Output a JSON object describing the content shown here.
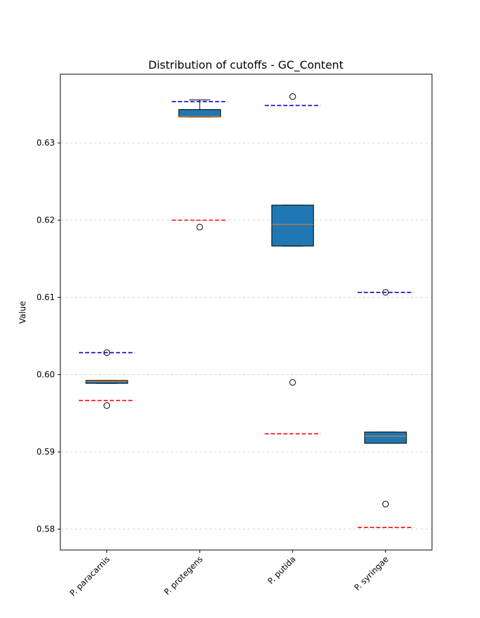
{
  "chart_data": {
    "type": "box",
    "title": "Distribution of cutoffs - GC_Content",
    "xlabel": "",
    "ylabel": "Value",
    "ylim": [
      0.5773,
      0.6389
    ],
    "yticks": [
      0.58,
      0.59,
      0.6,
      0.61,
      0.62,
      0.63
    ],
    "ytick_labels": [
      "0.58",
      "0.59",
      "0.60",
      "0.61",
      "0.62",
      "0.63"
    ],
    "grid": "horizontal dashed",
    "categories": [
      "P. paracarnis",
      "P. protegens",
      "P. putida",
      "P. syringae"
    ],
    "boxes": [
      {
        "q1": 0.59888,
        "median": 0.59912,
        "q3": 0.59925,
        "whisker_low": 0.59888,
        "whisker_high": 0.59925,
        "outliers": [
          0.60285,
          0.596
        ],
        "upper_cutoff": 0.60285,
        "lower_cutoff": 0.59665
      },
      {
        "q1": 0.63338,
        "median": 0.63345,
        "q3": 0.63432,
        "whisker_low": 0.63338,
        "whisker_high": 0.63557,
        "outliers": [
          0.6191
        ],
        "upper_cutoff": 0.63535,
        "lower_cutoff": 0.62
      },
      {
        "q1": 0.61665,
        "median": 0.61945,
        "q3": 0.62195,
        "whisker_low": 0.61665,
        "whisker_high": 0.62195,
        "outliers": [
          0.636,
          0.599
        ],
        "upper_cutoff": 0.63485,
        "lower_cutoff": 0.59235
      },
      {
        "q1": 0.59112,
        "median": 0.59205,
        "q3": 0.59258,
        "whisker_low": 0.59112,
        "whisker_high": 0.59258,
        "outliers": [
          0.61065,
          0.58325
        ],
        "upper_cutoff": 0.61065,
        "lower_cutoff": 0.58022
      }
    ],
    "colors": {
      "box_fill": "#1f77b4",
      "median": "#ff7f0e",
      "upper_cutoff": "#0000cd",
      "lower_cutoff": "#ff0000",
      "grid": "#cccccc"
    }
  }
}
